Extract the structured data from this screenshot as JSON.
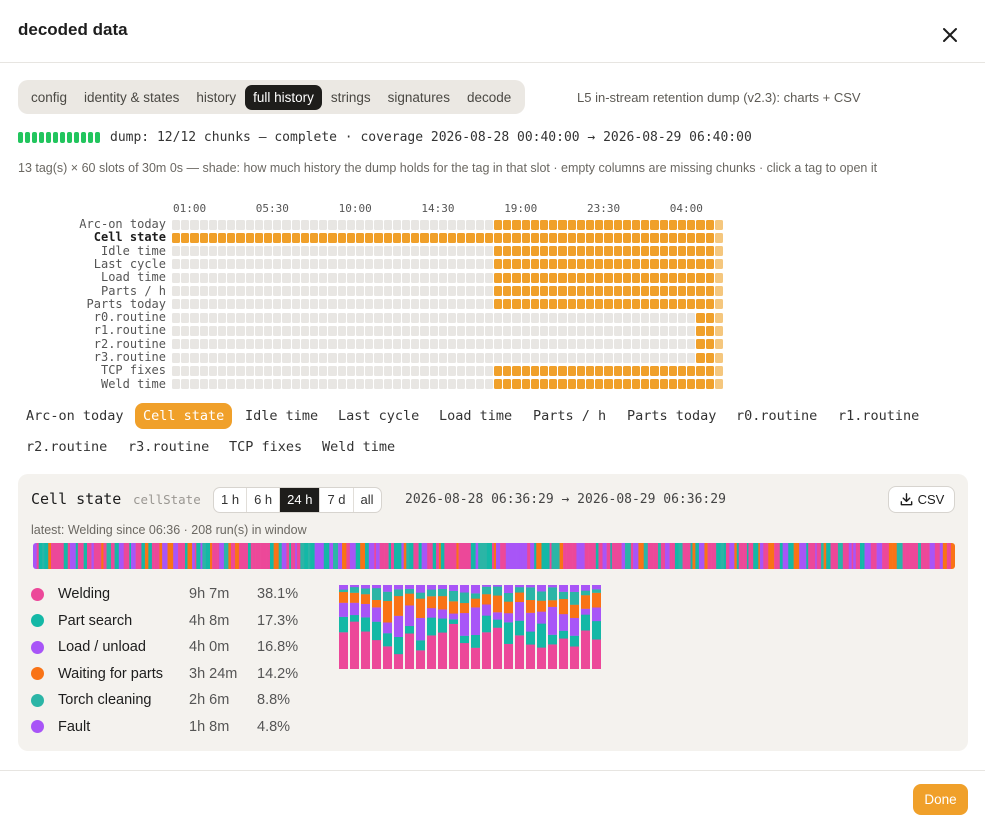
{
  "dialog": {
    "title": "decoded data",
    "done_label": "Done"
  },
  "tabs": [
    {
      "label": "config",
      "active": false
    },
    {
      "label": "identity & states",
      "active": false
    },
    {
      "label": "history",
      "active": false
    },
    {
      "label": "full history",
      "active": true
    },
    {
      "label": "strings",
      "active": false
    },
    {
      "label": "signatures",
      "active": false
    },
    {
      "label": "decode",
      "active": false
    }
  ],
  "tabs_note": "L5 in-stream retention dump (v2.3): charts + CSV",
  "dump": {
    "chunks_present": 12,
    "chunks_total": 12,
    "text": "dump: 12/12 chunks — complete · coverage 2026-08-28 00:40:00 → 2026-08-29 06:40:00"
  },
  "description": "13 tag(s) × 60 slots of 30m 0s — shade: how much history the dump holds for the tag in that slot · empty columns are missing chunks · click a tag to open it",
  "heatmap": {
    "slots": 60,
    "time_labels": [
      "01:00",
      "05:30",
      "10:00",
      "14:30",
      "19:00",
      "23:30",
      "04:00"
    ],
    "time_label_slots": [
      0,
      9,
      18,
      27,
      36,
      45,
      54
    ],
    "colors": {
      "full": "#f0a02a",
      "partial": "#f5c77e",
      "empty": "#e8e6e3"
    },
    "rows": [
      {
        "label": "Arc-on today",
        "bold": false,
        "start": 35,
        "end": 59
      },
      {
        "label": "Cell state",
        "bold": true,
        "start": 0,
        "end": 59
      },
      {
        "label": "Idle time",
        "bold": false,
        "start": 35,
        "end": 59
      },
      {
        "label": "Last cycle",
        "bold": false,
        "start": 35,
        "end": 59
      },
      {
        "label": "Load time",
        "bold": false,
        "start": 35,
        "end": 59
      },
      {
        "label": "Parts / h",
        "bold": false,
        "start": 35,
        "end": 59
      },
      {
        "label": "Parts today",
        "bold": false,
        "start": 35,
        "end": 59
      },
      {
        "label": "r0.routine",
        "bold": false,
        "start": 57,
        "end": 59
      },
      {
        "label": "r1.routine",
        "bold": false,
        "start": 57,
        "end": 59
      },
      {
        "label": "r2.routine",
        "bold": false,
        "start": 57,
        "end": 59
      },
      {
        "label": "r3.routine",
        "bold": false,
        "start": 57,
        "end": 59
      },
      {
        "label": "TCP fixes",
        "bold": false,
        "start": 35,
        "end": 59
      },
      {
        "label": "Weld time",
        "bold": false,
        "start": 35,
        "end": 59
      }
    ]
  },
  "tag_chips": [
    {
      "label": "Arc-on today",
      "active": false
    },
    {
      "label": "Cell state",
      "active": true
    },
    {
      "label": "Idle time",
      "active": false
    },
    {
      "label": "Last cycle",
      "active": false
    },
    {
      "label": "Load time",
      "active": false
    },
    {
      "label": "Parts / h",
      "active": false
    },
    {
      "label": "Parts today",
      "active": false
    },
    {
      "label": "r0.routine",
      "active": false
    },
    {
      "label": "r1.routine",
      "active": false
    },
    {
      "label": "r2.routine",
      "active": false
    },
    {
      "label": "r3.routine",
      "active": false
    },
    {
      "label": "TCP fixes",
      "active": false
    },
    {
      "label": "Weld time",
      "active": false
    }
  ],
  "detail": {
    "title": "Cell state",
    "key": "cellState",
    "ranges": [
      {
        "label": "1 h",
        "active": false
      },
      {
        "label": "6 h",
        "active": false
      },
      {
        "label": "24 h",
        "active": true
      },
      {
        "label": "7 d",
        "active": false
      },
      {
        "label": "all",
        "active": false
      }
    ],
    "range_text": "2026-08-28 06:36:29 → 2026-08-29 06:36:29",
    "csv_label": "CSV",
    "latest": "latest: Welding since 06:36 · 208 run(s) in window",
    "states": [
      {
        "name": "Welding",
        "duration": "9h 7m",
        "percent": "38.1%",
        "color": "#ec4899"
      },
      {
        "name": "Part search",
        "duration": "4h 8m",
        "percent": "17.3%",
        "color": "#14b8a6"
      },
      {
        "name": "Load / unload",
        "duration": "4h 0m",
        "percent": "16.8%",
        "color": "#a855f7"
      },
      {
        "name": "Waiting for parts",
        "duration": "3h 24m",
        "percent": "14.2%",
        "color": "#f97316"
      },
      {
        "name": "Torch cleaning",
        "duration": "2h 6m",
        "percent": "8.8%",
        "color": "#2bb5a6"
      },
      {
        "name": "Fault",
        "duration": "1h 8m",
        "percent": "4.8%",
        "color": "#a855f7"
      }
    ]
  }
}
